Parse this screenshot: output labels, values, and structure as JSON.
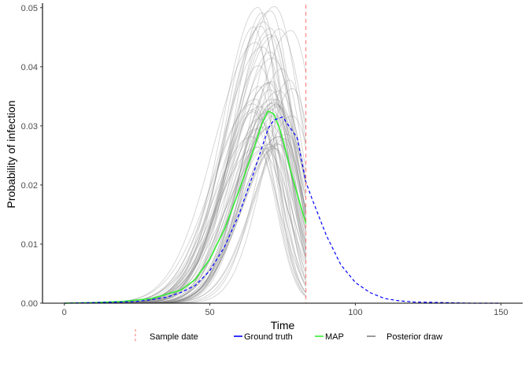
{
  "chart_data": {
    "type": "line",
    "title": "",
    "xlabel": "Time",
    "ylabel": "Probability of infection",
    "xlim": [
      -7.5,
      157.5
    ],
    "ylim": [
      0,
      0.0505
    ],
    "x_ticks": [
      0,
      50,
      100,
      150
    ],
    "y_ticks": [
      0.0,
      0.01,
      0.02,
      0.03,
      0.04,
      0.05
    ],
    "x_tick_labels": [
      "0",
      "50",
      "100",
      "150"
    ],
    "y_tick_labels": [
      "0.00",
      "0.01",
      "0.02",
      "0.03",
      "0.04",
      "0.05"
    ],
    "grid": false,
    "legend_position": "bottom",
    "sample_date": 83,
    "series": [
      {
        "name": "Ground truth",
        "style": "dashed",
        "color": "#0000ff",
        "x": [
          0,
          10,
          20,
          25,
          30,
          35,
          40,
          45,
          50,
          55,
          60,
          65,
          70,
          72,
          75,
          80,
          83,
          85,
          90,
          95,
          100,
          105,
          110,
          115,
          120,
          130,
          140,
          150
        ],
        "y": [
          0.0,
          0.0001,
          0.0002,
          0.0003,
          0.0006,
          0.001,
          0.0018,
          0.003,
          0.0055,
          0.0095,
          0.015,
          0.022,
          0.0295,
          0.031,
          0.0315,
          0.028,
          0.0205,
          0.0178,
          0.0115,
          0.0065,
          0.0035,
          0.0018,
          0.0008,
          0.0004,
          0.0002,
          0.0001,
          0.0,
          0.0
        ]
      },
      {
        "name": "MAP",
        "style": "solid",
        "color": "#33ee33",
        "x": [
          0,
          10,
          20,
          30,
          40,
          45,
          50,
          55,
          60,
          65,
          68,
          70,
          72,
          74,
          76,
          78,
          80,
          83
        ],
        "y": [
          0.0,
          0.0001,
          0.0003,
          0.0008,
          0.0022,
          0.004,
          0.0075,
          0.0125,
          0.019,
          0.026,
          0.0305,
          0.0325,
          0.032,
          0.0295,
          0.026,
          0.022,
          0.0185,
          0.0135
        ]
      },
      {
        "name": "Posterior draw",
        "style": "solid",
        "color": "#808080",
        "count": 60,
        "peak_time_range": [
          64,
          79
        ],
        "peak_value_range": [
          0.026,
          0.0505
        ]
      }
    ]
  },
  "legend": {
    "items": [
      {
        "label": "Sample date",
        "color": "#f8766d",
        "style": "dashed-vertical"
      },
      {
        "label": "Ground truth",
        "color": "#0000ff",
        "style": "line"
      },
      {
        "label": "MAP",
        "color": "#33ee33",
        "style": "line"
      },
      {
        "label": "Posterior draw",
        "color": "#808080",
        "style": "line"
      }
    ]
  }
}
